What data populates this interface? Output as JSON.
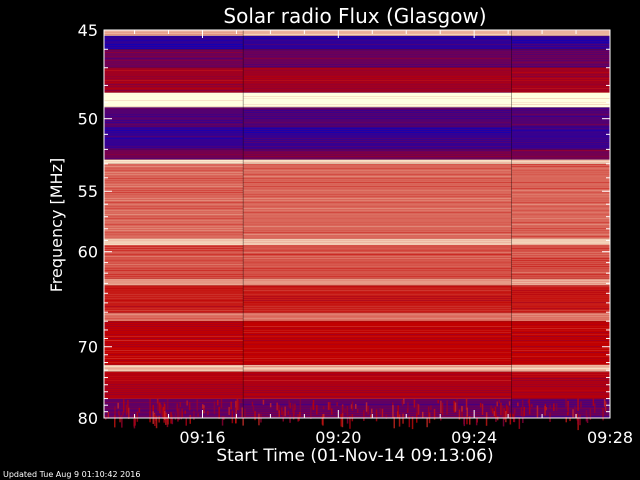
{
  "footer": {
    "updated": "Updated Tue Aug  9 01:10:42 2016"
  },
  "chart_data": {
    "type": "heatmap",
    "title": "Solar radio Flux (Glasgow)",
    "xlabel": "Start Time (01-Nov-14 09:13:06)",
    "ylabel": "Frequency [MHz]",
    "x_ticks": [
      "09:16",
      "09:20",
      "09:24",
      "09:28"
    ],
    "x_tick_minutes": [
      16,
      20,
      24,
      28
    ],
    "xlim_minutes": [
      13.1,
      28
    ],
    "y_ticks": [
      45,
      50,
      55,
      60,
      70,
      80
    ],
    "ylim": [
      45,
      80
    ],
    "y_scale": "reciprocal",
    "segment_breaks_minutes": [
      17.2,
      25.1
    ],
    "bands": [
      {
        "from": 45.0,
        "to": 45.3,
        "level": 0.85
      },
      {
        "from": 45.3,
        "to": 46.0,
        "level": 0.12
      },
      {
        "from": 46.0,
        "to": 47.0,
        "level": 0.28
      },
      {
        "from": 47.0,
        "to": 48.4,
        "level": 0.42
      },
      {
        "from": 48.4,
        "to": 49.3,
        "level": 1.0
      },
      {
        "from": 49.3,
        "to": 50.5,
        "level": 0.22
      },
      {
        "from": 50.5,
        "to": 52.0,
        "level": 0.14
      },
      {
        "from": 52.0,
        "to": 52.7,
        "level": 0.3
      },
      {
        "from": 52.7,
        "to": 53.0,
        "level": 0.92
      },
      {
        "from": 53.0,
        "to": 58.8,
        "level": 0.7
      },
      {
        "from": 58.8,
        "to": 59.4,
        "level": 0.9
      },
      {
        "from": 59.4,
        "to": 62.5,
        "level": 0.66
      },
      {
        "from": 62.5,
        "to": 63.2,
        "level": 0.8
      },
      {
        "from": 63.2,
        "to": 66.0,
        "level": 0.55
      },
      {
        "from": 66.0,
        "to": 67.0,
        "level": 0.72
      },
      {
        "from": 67.0,
        "to": 72.3,
        "level": 0.5
      },
      {
        "from": 72.3,
        "to": 73.2,
        "level": 0.86
      },
      {
        "from": 73.2,
        "to": 77.0,
        "level": 0.46
      },
      {
        "from": 77.0,
        "to": 80.0,
        "level": 0.25
      }
    ],
    "colors": {
      "low": "#0000c8",
      "mid": "#c00000",
      "high": "#ffffe0",
      "background": "#000000"
    }
  }
}
